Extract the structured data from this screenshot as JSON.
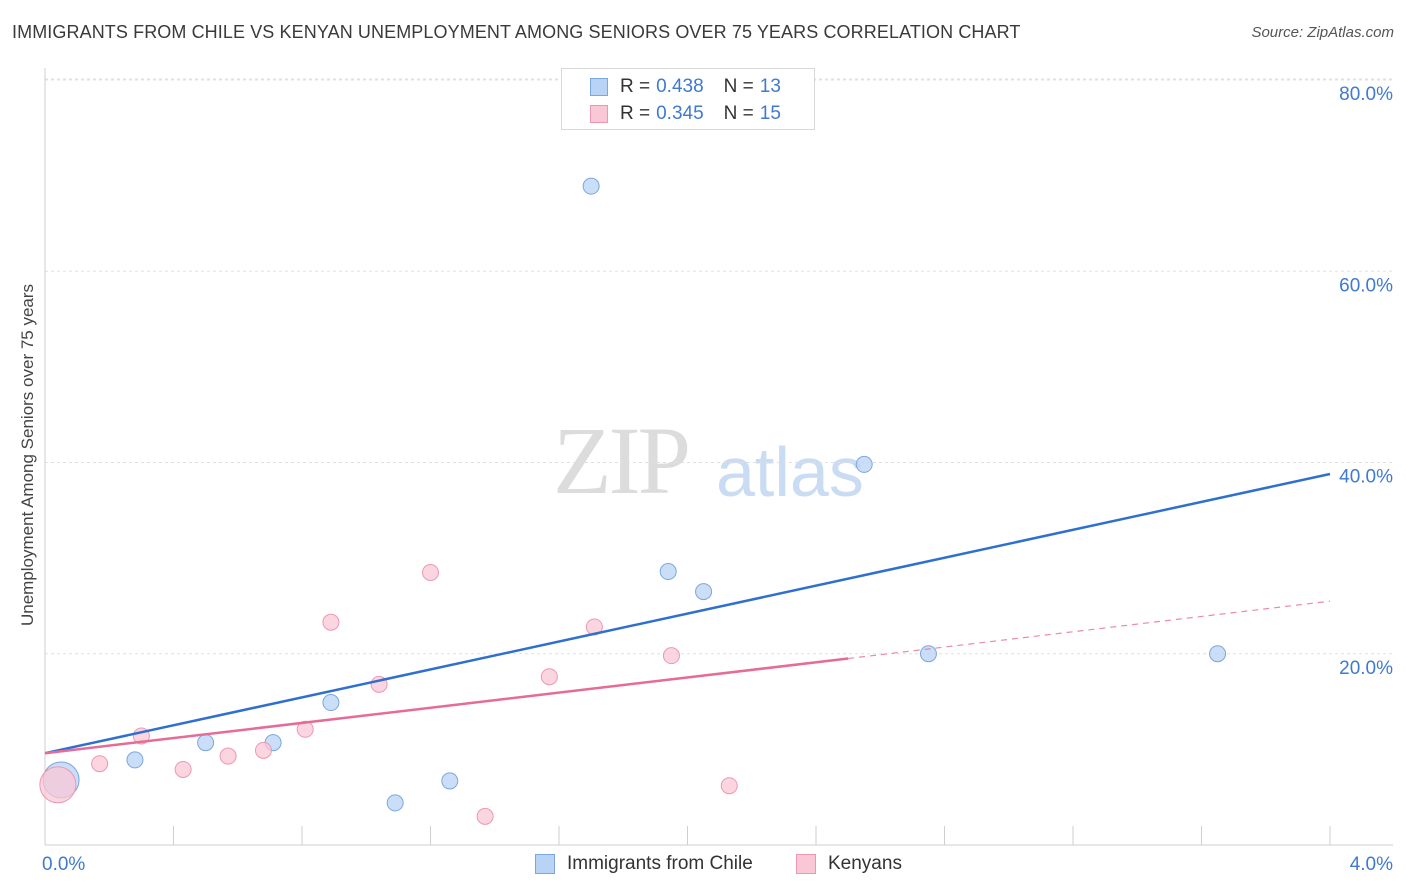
{
  "header": {
    "title": "IMMIGRANTS FROM CHILE VS KENYAN UNEMPLOYMENT AMONG SENIORS OVER 75 YEARS CORRELATION CHART",
    "source": "Source: ZipAtlas.com"
  },
  "watermark": {
    "zip": "ZIP",
    "atlas": "atlas"
  },
  "legend": {
    "rows": [
      {
        "r_label": "R = ",
        "r_value": "0.438",
        "n_label": "N = ",
        "n_value": "13"
      },
      {
        "r_label": "R = ",
        "r_value": "0.345",
        "n_label": "N = ",
        "n_value": "15"
      }
    ]
  },
  "bottom_legend": {
    "series1": "Immigrants from Chile",
    "series2": "Kenyans"
  },
  "colors": {
    "blue_fill": "#b8d3f5",
    "blue_stroke": "#7ba6df",
    "blue_line": "#2f6fd0",
    "pink_fill": "#f9c7d5",
    "pink_stroke": "#ee97b1",
    "pink_line": "#e66b96",
    "axis_label": "#3f7ad0",
    "grid": "#e0e0e0"
  },
  "chart_data": {
    "type": "scatter",
    "title": "IMMIGRANTS FROM CHILE VS KENYAN UNEMPLOYMENT AMONG SENIORS OVER 75 YEARS CORRELATION CHART",
    "xlabel": "",
    "ylabel": "Unemployment Among Seniors over 75 years",
    "xlim": [
      0,
      4.0
    ],
    "ylim": [
      0,
      80
    ],
    "x_ticks": [
      "0.0%",
      "4.0%"
    ],
    "y_ticks": [
      {
        "value": 20,
        "label": "20.0%"
      },
      {
        "value": 40,
        "label": "40.0%"
      },
      {
        "value": 60,
        "label": "60.0%"
      },
      {
        "value": 80,
        "label": "80.0%"
      }
    ],
    "series": [
      {
        "name": "Immigrants from Chile",
        "color": "blue",
        "points": [
          {
            "x": 0.05,
            "y": 6.8,
            "size": "large"
          },
          {
            "x": 0.28,
            "y": 8.9
          },
          {
            "x": 0.5,
            "y": 10.7
          },
          {
            "x": 0.71,
            "y": 10.7
          },
          {
            "x": 0.89,
            "y": 14.9
          },
          {
            "x": 1.09,
            "y": 4.4
          },
          {
            "x": 1.26,
            "y": 6.7
          },
          {
            "x": 1.7,
            "y": 68.9
          },
          {
            "x": 1.94,
            "y": 28.6
          },
          {
            "x": 2.05,
            "y": 26.5
          },
          {
            "x": 2.55,
            "y": 39.8
          },
          {
            "x": 2.75,
            "y": 20.0
          },
          {
            "x": 3.65,
            "y": 20.0
          }
        ],
        "trend": {
          "x0": 0.0,
          "y0": 9.6,
          "x1": 4.0,
          "y1": 38.8
        }
      },
      {
        "name": "Kenyans",
        "color": "pink",
        "points": [
          {
            "x": 0.04,
            "y": 6.3,
            "size": "large"
          },
          {
            "x": 0.17,
            "y": 8.5
          },
          {
            "x": 0.3,
            "y": 11.4
          },
          {
            "x": 0.43,
            "y": 7.9
          },
          {
            "x": 0.57,
            "y": 9.3
          },
          {
            "x": 0.68,
            "y": 9.9
          },
          {
            "x": 0.81,
            "y": 12.1
          },
          {
            "x": 0.89,
            "y": 23.3
          },
          {
            "x": 1.04,
            "y": 16.8
          },
          {
            "x": 1.2,
            "y": 28.5
          },
          {
            "x": 1.37,
            "y": 3.0
          },
          {
            "x": 1.57,
            "y": 17.6
          },
          {
            "x": 1.71,
            "y": 22.8
          },
          {
            "x": 1.95,
            "y": 19.8
          },
          {
            "x": 2.13,
            "y": 6.2
          }
        ],
        "trend": {
          "x0": 0.0,
          "y0": 9.6,
          "x1": 2.5,
          "y1": 19.5,
          "dash_to_x": 4.0,
          "dash_to_y": 25.5
        }
      }
    ]
  }
}
